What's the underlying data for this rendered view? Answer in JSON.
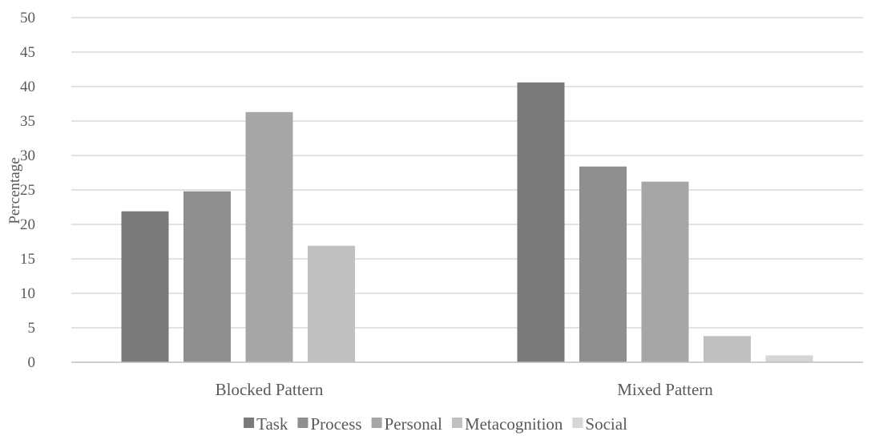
{
  "chart_data": {
    "type": "bar",
    "categories": [
      "Blocked Pattern",
      "Mixed Pattern"
    ],
    "series": [
      {
        "name": "Task",
        "values": [
          21.9,
          40.6
        ],
        "color": "#7a7a7a"
      },
      {
        "name": "Process",
        "values": [
          24.8,
          28.4
        ],
        "color": "#8f8f8f"
      },
      {
        "name": "Personal",
        "values": [
          36.3,
          26.2
        ],
        "color": "#a6a6a6"
      },
      {
        "name": "Metacognition",
        "values": [
          16.9,
          3.8
        ],
        "color": "#c0c0c0"
      },
      {
        "name": "Social",
        "values": [
          0,
          1.0
        ],
        "color": "#d6d6d6"
      }
    ],
    "ylabel": "Percentage",
    "xlabel": "",
    "ylim": [
      0,
      50
    ],
    "yticks": [
      0,
      5,
      10,
      15,
      20,
      25,
      30,
      35,
      40,
      45,
      50
    ],
    "grid": true,
    "legend": "bottom"
  }
}
